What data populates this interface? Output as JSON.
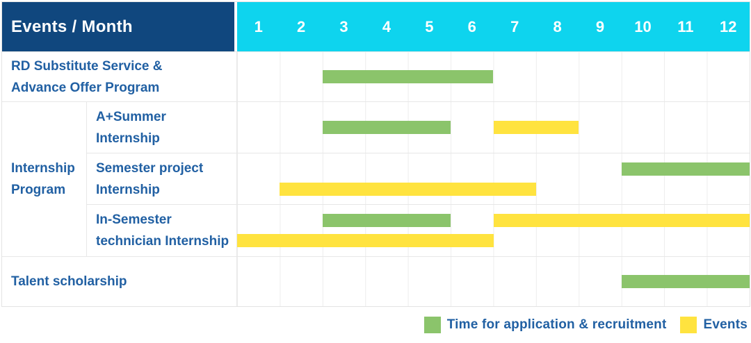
{
  "header": {
    "corner": "Events / Month",
    "months": [
      "1",
      "2",
      "3",
      "4",
      "5",
      "6",
      "7",
      "8",
      "9",
      "10",
      "11",
      "12"
    ]
  },
  "group": {
    "id": "internship-program",
    "label": "Internship\nProgram"
  },
  "rows": [
    {
      "id": "rd-substitute-service",
      "label": "RD Substitute Service &\nAdvance Offer Program",
      "in_group": false,
      "bar_lines": 1,
      "bars": [
        {
          "color": "green",
          "start_month": 3,
          "end_month": 6,
          "line": 0
        }
      ]
    },
    {
      "id": "a-plus-summer-internship",
      "label": "A+Summer\nInternship",
      "in_group": true,
      "bar_lines": 1,
      "bars": [
        {
          "color": "green",
          "start_month": 3,
          "end_month": 5,
          "line": 0
        },
        {
          "color": "yellow",
          "start_month": 7,
          "end_month": 8,
          "line": 0
        }
      ]
    },
    {
      "id": "semester-project-internship",
      "label": "Semester project\nInternship",
      "in_group": true,
      "bar_lines": 2,
      "bars": [
        {
          "color": "green",
          "start_month": 10,
          "end_month": 12,
          "line": 0
        },
        {
          "color": "yellow",
          "start_month": 2,
          "end_month": 7,
          "line": 1
        }
      ]
    },
    {
      "id": "in-semester-technician-internship",
      "label": "In-Semester\ntechnician Internship",
      "in_group": true,
      "bar_lines": 2,
      "bars": [
        {
          "color": "green",
          "start_month": 3,
          "end_month": 5,
          "line": 0
        },
        {
          "color": "yellow",
          "start_month": 7,
          "end_month": 12,
          "line": 0
        },
        {
          "color": "yellow",
          "start_month": 1,
          "end_month": 6,
          "line": 1
        }
      ]
    },
    {
      "id": "talent-scholarship",
      "label": "Talent scholarship",
      "in_group": false,
      "bar_lines": 1,
      "bars": [
        {
          "color": "green",
          "start_month": 10,
          "end_month": 12,
          "line": 0
        }
      ]
    }
  ],
  "legend": [
    {
      "color": "green",
      "label": "Time for application & recruitment"
    },
    {
      "color": "yellow",
      "label": "Events"
    }
  ],
  "colors": {
    "header_blue": "#10477e",
    "cyan": "#0ed4ee",
    "label_blue": "#2160a3",
    "green": "#8bc46b",
    "yellow": "#ffe33f"
  },
  "chart_data": {
    "type": "gantt",
    "title": "",
    "xlabel": "Month",
    "x_ticks": [
      1,
      2,
      3,
      4,
      5,
      6,
      7,
      8,
      9,
      10,
      11,
      12
    ],
    "x_range": [
      1,
      12
    ],
    "grid": true,
    "legend_position": "bottom-right",
    "legend_entries": [
      "Time for application & recruitment",
      "Events"
    ],
    "tasks": [
      {
        "row": "RD Substitute Service & Advance Offer Program",
        "group": null,
        "bars": [
          {
            "kind": "Time for application & recruitment",
            "start_month": 3,
            "end_month": 6
          }
        ]
      },
      {
        "row": "A+Summer Internship",
        "group": "Internship Program",
        "bars": [
          {
            "kind": "Time for application & recruitment",
            "start_month": 3,
            "end_month": 5
          },
          {
            "kind": "Events",
            "start_month": 7,
            "end_month": 8
          }
        ]
      },
      {
        "row": "Semester project Internship",
        "group": "Internship Program",
        "bars": [
          {
            "kind": "Time for application & recruitment",
            "start_month": 10,
            "end_month": 12
          },
          {
            "kind": "Events",
            "start_month": 2,
            "end_month": 7
          }
        ]
      },
      {
        "row": "In-Semester technician Internship",
        "group": "Internship Program",
        "bars": [
          {
            "kind": "Time for application & recruitment",
            "start_month": 3,
            "end_month": 5
          },
          {
            "kind": "Events",
            "start_month": 7,
            "end_month": 12
          },
          {
            "kind": "Events",
            "start_month": 1,
            "end_month": 6
          }
        ]
      },
      {
        "row": "Talent scholarship",
        "group": null,
        "bars": [
          {
            "kind": "Time for application & recruitment",
            "start_month": 10,
            "end_month": 12
          }
        ]
      }
    ]
  }
}
